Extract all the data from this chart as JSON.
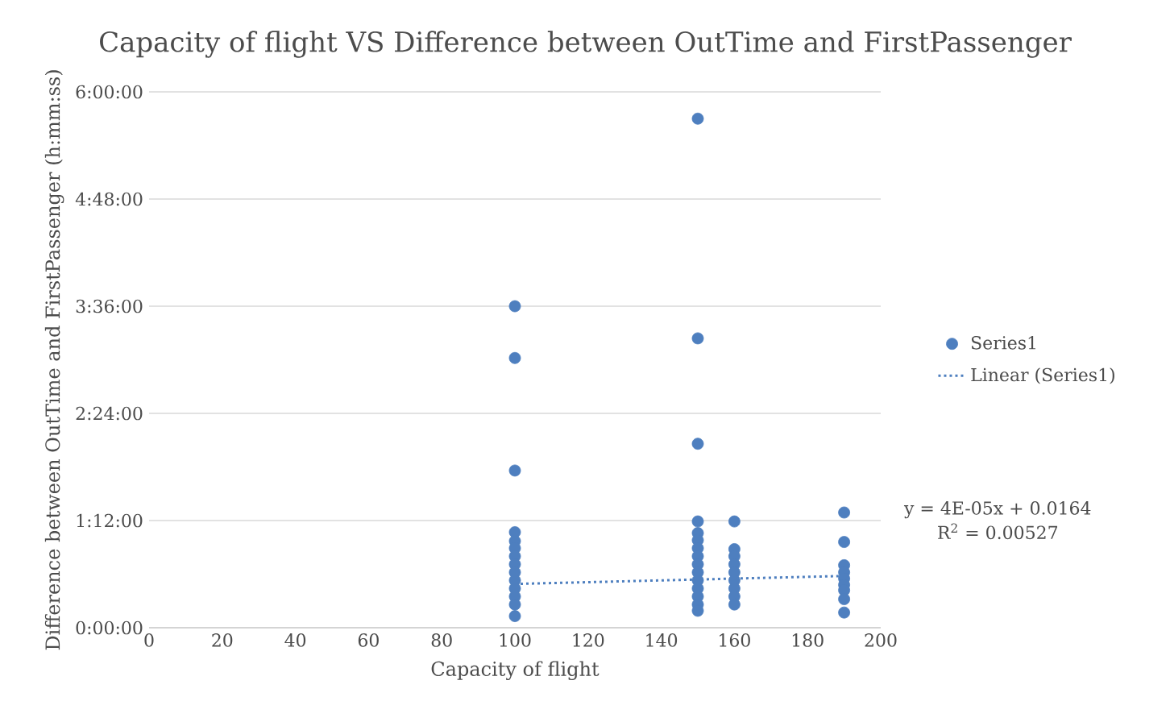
{
  "chart_data": {
    "type": "scatter",
    "title": "Capacity of flight VS Difference between OutTime and FirstPassenger",
    "xlabel": "Capacity of flight",
    "ylabel": "Difference between OutTime and FirstPassenger (h:mm:ss)",
    "series": [
      {
        "name": "Series1",
        "type": "scatter",
        "color": "#4e7fbf",
        "marker": "circle",
        "x": [
          100,
          100,
          100,
          100,
          100,
          100,
          100,
          100,
          100,
          100,
          100,
          100,
          100,
          100,
          150,
          150,
          150,
          150,
          150,
          150,
          150,
          150,
          150,
          150,
          150,
          150,
          150,
          150,
          150,
          160,
          160,
          160,
          160,
          160,
          160,
          160,
          160,
          160,
          190,
          190,
          190,
          190,
          190,
          190,
          190,
          190,
          190
        ],
        "values": [
          3.6,
          3.02,
          1.76,
          1.07,
          0.97,
          0.89,
          0.8,
          0.71,
          0.62,
          0.53,
          0.44,
          0.35,
          0.26,
          0.13,
          5.7,
          3.24,
          2.06,
          1.19,
          1.06,
          0.98,
          0.89,
          0.8,
          0.71,
          0.62,
          0.53,
          0.44,
          0.35,
          0.26,
          0.19,
          1.19,
          0.88,
          0.8,
          0.71,
          0.62,
          0.53,
          0.44,
          0.35,
          0.26,
          1.29,
          0.96,
          0.7,
          0.62,
          0.55,
          0.48,
          0.42,
          0.32,
          0.17
        ]
      },
      {
        "name": "Linear (Series1)",
        "type": "line",
        "color": "#4e7fbf",
        "marker": "none",
        "line_style": "dotted",
        "x": [
          100,
          190
        ],
        "values": [
          0.49,
          0.58
        ]
      }
    ],
    "xlim": [
      0,
      200
    ],
    "xticks": [
      0,
      20,
      40,
      60,
      80,
      100,
      120,
      140,
      160,
      180,
      200
    ],
    "ylim": [
      0,
      6
    ],
    "yticks": [
      {
        "value": 0,
        "label": "0:00:00"
      },
      {
        "value": 1.2,
        "label": "1:12:00"
      },
      {
        "value": 2.4,
        "label": "2:24:00"
      },
      {
        "value": 3.6,
        "label": "3:36:00"
      },
      {
        "value": 4.8,
        "label": "4:48:00"
      },
      {
        "value": 6,
        "label": "6:00:00"
      }
    ],
    "grid": "y",
    "legend": "right",
    "annotations": [
      "y = 4E-05x + 0.0164",
      "R$^{2}$ = 0.00527"
    ]
  }
}
